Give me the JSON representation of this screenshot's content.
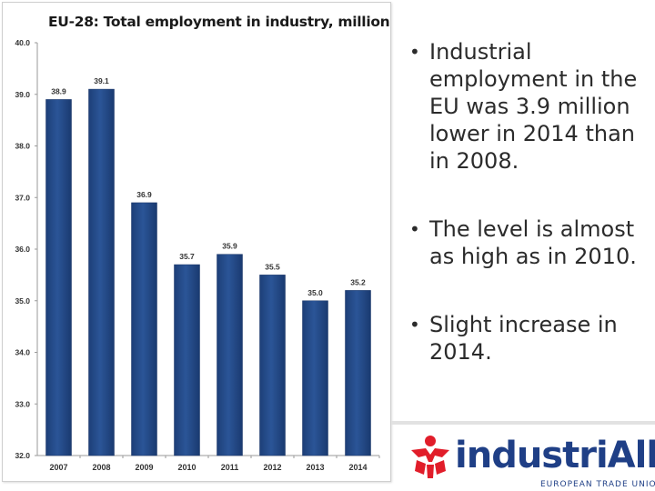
{
  "chart_data": {
    "type": "bar",
    "title": "EU-28: Total employment in industry, million",
    "categories": [
      "2007",
      "2008",
      "2009",
      "2010",
      "2011",
      "2012",
      "2013",
      "2014"
    ],
    "values": [
      38.9,
      39.1,
      36.9,
      35.7,
      35.9,
      35.5,
      35.0,
      35.2
    ],
    "value_labels": [
      "38.9",
      "39.1",
      "36.9",
      "35.7",
      "35.9",
      "35.5",
      "35.0",
      "35.2"
    ],
    "ylim": [
      32.0,
      40.0
    ],
    "yticks": [
      "32.0",
      "33.0",
      "34.0",
      "35.0",
      "36.0",
      "37.0",
      "38.0",
      "39.0",
      "40.0"
    ],
    "xlabel": "",
    "ylabel": "",
    "grid": false,
    "bar_color": "#2b5597"
  },
  "bullets": [
    "Industrial employment in the EU was 3.9 million lower in 2014 than in 2008.",
    "The level is almost as high as in 2010.",
    "Slight increase in 2014."
  ],
  "bullet_symbol": "•",
  "logo": {
    "name": "industriAll",
    "subtitle": "EUROPEAN TRADE UNION",
    "color": "#1f3f86",
    "accent": "#e11d2a"
  }
}
